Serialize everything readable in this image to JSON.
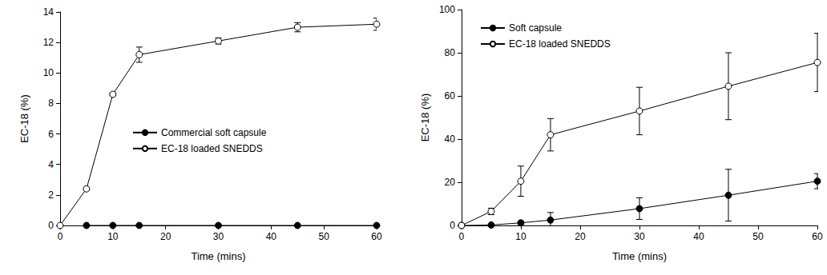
{
  "chart_data": [
    {
      "type": "line",
      "x_label": "Time (mins)",
      "y_label": "EC-18 (%)",
      "x": [
        0,
        5,
        10,
        15,
        30,
        45,
        60
      ],
      "xlim": [
        0,
        60
      ],
      "xticks": [
        0,
        10,
        20,
        30,
        40,
        50,
        60
      ],
      "ylim": [
        0,
        14
      ],
      "yticks": [
        0,
        2,
        4,
        6,
        8,
        10,
        12,
        14
      ],
      "grid": false,
      "legend": "center",
      "series": [
        {
          "name": "Commercial soft capsule",
          "color": "#000000",
          "marker": "filled_circle",
          "values": [
            null,
            0,
            0,
            0,
            0,
            0,
            0
          ],
          "errors": [
            null,
            null,
            null,
            null,
            null,
            null,
            null
          ]
        },
        {
          "name": "EC-18 loaded SNEDDS",
          "color": "#000000",
          "marker": "open_circle",
          "values": [
            0,
            2.4,
            8.6,
            11.2,
            12.1,
            13.0,
            13.2
          ],
          "errors": [
            null,
            0.1,
            0.1,
            0.5,
            0.2,
            0.3,
            0.4
          ]
        }
      ]
    },
    {
      "type": "line",
      "x_label": "Time (mins)",
      "y_label": "EC-18 (%)",
      "x": [
        0,
        5,
        10,
        15,
        30,
        45,
        60
      ],
      "xlim": [
        0,
        60
      ],
      "xticks": [
        0,
        10,
        20,
        30,
        40,
        50,
        60
      ],
      "ylim": [
        0,
        100
      ],
      "yticks": [
        0,
        20,
        40,
        60,
        80,
        100
      ],
      "grid": false,
      "legend": "upper left",
      "series": [
        {
          "name": "Soft capsule",
          "color": "#000000",
          "marker": "filled_circle",
          "values": [
            0,
            0.2,
            1.2,
            2.5,
            7.8,
            14.0,
            20.5
          ],
          "errors": [
            null,
            0.3,
            0.8,
            3.5,
            5.0,
            12.0,
            3.5
          ]
        },
        {
          "name": "EC-18 loaded SNEDDS",
          "color": "#000000",
          "marker": "open_circle",
          "values": [
            0,
            6.5,
            20.5,
            42.0,
            53.0,
            64.5,
            75.5
          ],
          "errors": [
            null,
            1.5,
            7.0,
            7.5,
            11.0,
            15.5,
            13.5
          ]
        }
      ]
    }
  ]
}
